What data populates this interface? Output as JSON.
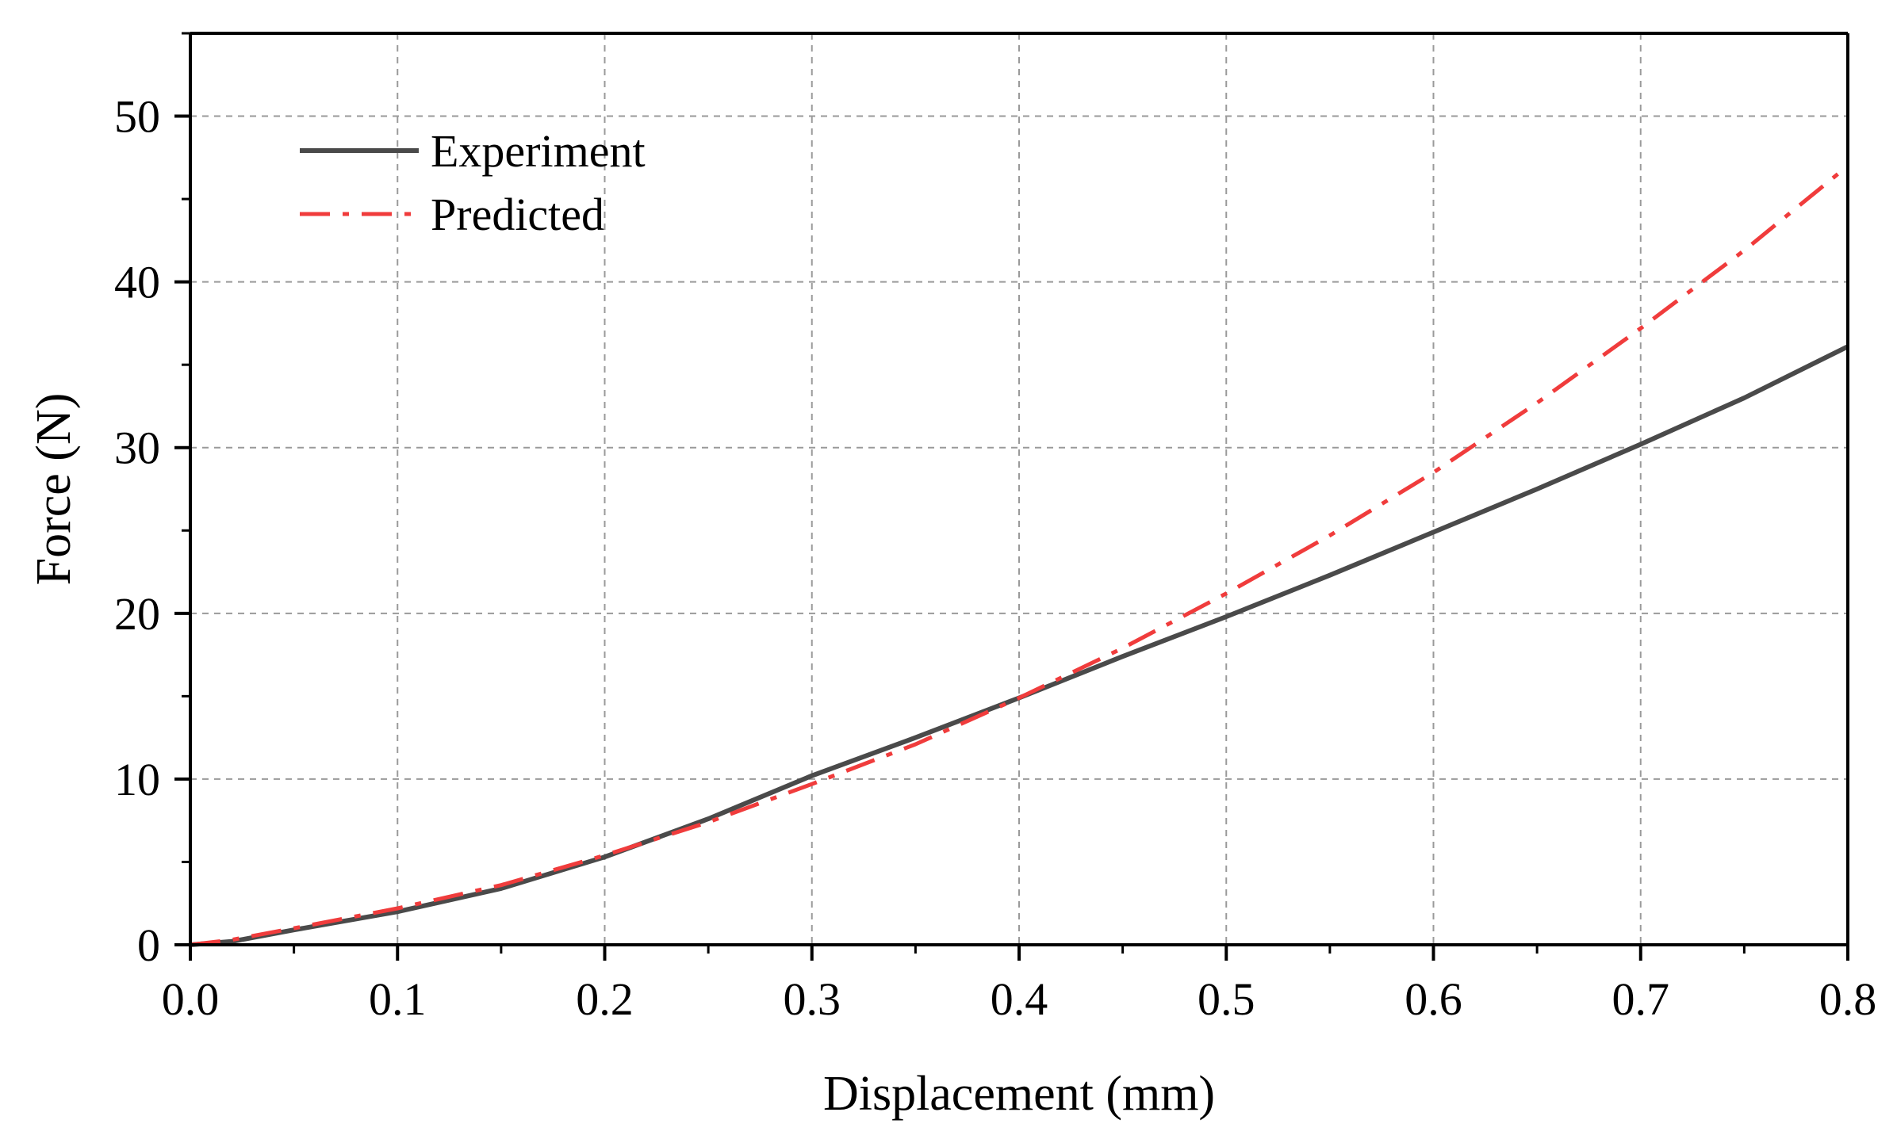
{
  "chart_data": {
    "type": "line",
    "title": "",
    "xlabel": "Displacement (mm)",
    "ylabel": "Force (N)",
    "xlim": [
      0.0,
      0.8
    ],
    "ylim": [
      0,
      55
    ],
    "x_ticks": [
      0.0,
      0.1,
      0.2,
      0.3,
      0.4,
      0.5,
      0.6,
      0.7,
      0.8
    ],
    "x_tick_labels": [
      "0.0",
      "0.1",
      "0.2",
      "0.3",
      "0.4",
      "0.5",
      "0.6",
      "0.7",
      "0.8"
    ],
    "y_ticks": [
      0,
      10,
      20,
      30,
      40,
      50
    ],
    "y_tick_labels": [
      "0",
      "10",
      "20",
      "30",
      "40",
      "50"
    ],
    "grid": true,
    "legend_position": "top-left",
    "series": [
      {
        "name": "Experiment",
        "color": "#4a4a4a",
        "style": "solid",
        "x": [
          0.0,
          0.02,
          0.05,
          0.1,
          0.15,
          0.2,
          0.25,
          0.3,
          0.35,
          0.4,
          0.45,
          0.5,
          0.55,
          0.6,
          0.65,
          0.7,
          0.75,
          0.8
        ],
        "values": [
          0.0,
          0.2,
          0.9,
          2.0,
          3.4,
          5.3,
          7.6,
          10.2,
          12.5,
          14.9,
          17.4,
          19.8,
          22.3,
          24.9,
          27.5,
          30.2,
          33.0,
          36.1
        ]
      },
      {
        "name": "Predicted",
        "color": "#f03c3c",
        "style": "dashdot",
        "x": [
          0.0,
          0.02,
          0.05,
          0.1,
          0.15,
          0.2,
          0.25,
          0.3,
          0.35,
          0.4,
          0.45,
          0.5,
          0.55,
          0.6,
          0.65,
          0.7,
          0.75,
          0.8
        ],
        "values": [
          0.0,
          0.3,
          1.0,
          2.2,
          3.6,
          5.4,
          7.4,
          9.7,
          12.1,
          14.9,
          17.9,
          21.2,
          24.7,
          28.5,
          32.7,
          37.2,
          41.9,
          47.0
        ]
      }
    ]
  }
}
